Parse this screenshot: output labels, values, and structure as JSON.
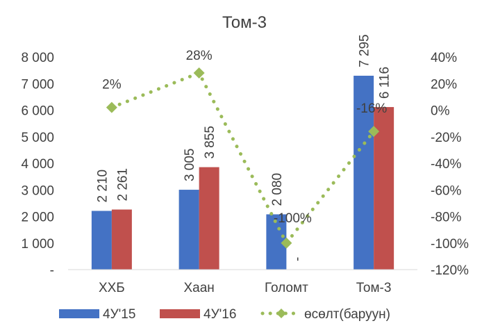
{
  "chart_data": {
    "type": "bar",
    "title": "Том-3",
    "categories": [
      "ХХБ",
      "Хаан",
      "Голомт",
      "Том-3"
    ],
    "series": [
      {
        "name": "4У'15",
        "type": "bar",
        "color": "#4472C4",
        "values": [
          2210,
          3005,
          2080,
          7295
        ],
        "labels": [
          "2 210",
          "3 005",
          "2 080",
          "7 295"
        ]
      },
      {
        "name": "4У'16",
        "type": "bar",
        "color": "#C0504D",
        "values": [
          2261,
          3855,
          0,
          6116
        ],
        "labels": [
          "2 261",
          "3 855",
          "-",
          "6 116"
        ]
      },
      {
        "name": "өсөлт(баруун)",
        "type": "line",
        "axis": "right",
        "color": "#9BBB59",
        "line_style": "dotted",
        "marker": "diamond",
        "values": [
          2,
          28,
          -100,
          -16
        ],
        "labels": [
          "2%",
          "28%",
          "-100%",
          "-16%"
        ]
      }
    ],
    "y_left": {
      "min": 0,
      "max": 8000,
      "step": 1000,
      "tick_labels": [
        "-",
        "1 000",
        "2 000",
        "3 000",
        "4 000",
        "5 000",
        "6 000",
        "7 000",
        "8 000"
      ]
    },
    "y_right": {
      "min": -120,
      "max": 40,
      "step": 20,
      "tick_labels": [
        "-120%",
        "-100%",
        "-80%",
        "-60%",
        "-40%",
        "-20%",
        "0%",
        "20%",
        "40%"
      ]
    },
    "grid": false,
    "legend": "bottom"
  }
}
